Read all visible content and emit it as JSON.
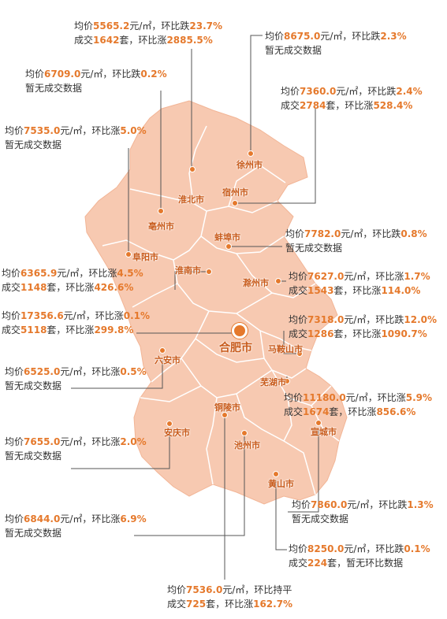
{
  "colors": {
    "land": "#f7c9b1",
    "land_light": "#fadbc9",
    "border": "#ffffff",
    "accent": "#e5792c",
    "leader": "#555555"
  },
  "cities": [
    {
      "id": "huaibei",
      "name": "淮北市",
      "line1": [
        "均价",
        "5565.2",
        "元/㎡，环比跌",
        "23.7%"
      ],
      "line2": [
        "成交",
        "1642",
        "套，环比涨",
        "2885.5%"
      ]
    },
    {
      "id": "xuzhou",
      "name": "徐州市",
      "line1": [
        "均价",
        "8675.0",
        "元/㎡，环比跌",
        "2.3%"
      ],
      "line2": [
        "暂无成交数据"
      ]
    },
    {
      "id": "bozhou",
      "name": "亳州市",
      "line1": [
        "均价",
        "6709.0",
        "元/㎡，环比跌",
        "0.2%"
      ],
      "line2": [
        "暂无成交数据"
      ]
    },
    {
      "id": "suzhou",
      "name": "宿州市",
      "line1": [
        "均价",
        "7360.0",
        "元/㎡，环比跌",
        "2.4%"
      ],
      "line2": [
        "成交",
        "2784",
        "套，环比涨",
        "528.4%"
      ]
    },
    {
      "id": "fuyang",
      "name": "阜阳市",
      "line1": [
        "均价",
        "7535.0",
        "元/㎡，环比涨",
        "5.0%"
      ],
      "line2": [
        "暂无成交数据"
      ]
    },
    {
      "id": "bengbu",
      "name": "蚌埠市",
      "line1": [
        "均价",
        "7782.0",
        "元/㎡，环比跌",
        "0.8%"
      ],
      "line2": [
        "暂无成交数据"
      ]
    },
    {
      "id": "huainan",
      "name": "淮南市",
      "line1": [
        "均价",
        "6365.9",
        "元/㎡，环比涨",
        "4.5%"
      ],
      "line2": [
        "成交",
        "1148",
        "套，环比涨",
        "426.6%"
      ]
    },
    {
      "id": "chuzhou",
      "name": "滁州市",
      "line1": [
        "均价",
        "7627.0",
        "元/㎡，环比涨",
        "1.7%"
      ],
      "line2": [
        "成交",
        "1543",
        "套，环比涨",
        "114.0%"
      ]
    },
    {
      "id": "hefei",
      "name": "合肥市",
      "line1": [
        "均价",
        "17356.6",
        "元/㎡，环比涨",
        "0.1%"
      ],
      "line2": [
        "成交",
        "5118",
        "套，环比涨",
        "299.8%"
      ]
    },
    {
      "id": "maanshan",
      "name": "马鞍山市",
      "line1": [
        "均价",
        "7318.0",
        "元/㎡，环比跌",
        "12.0%"
      ],
      "line2": [
        "成交",
        "1286",
        "套，环比涨",
        "1090.7%"
      ]
    },
    {
      "id": "luan",
      "name": "六安市",
      "line1": [
        "均价",
        "6525.0",
        "元/㎡，环比涨",
        "0.5%"
      ],
      "line2": [
        "暂无成交数据"
      ]
    },
    {
      "id": "wuhu",
      "name": "芜湖市",
      "line1": [
        "均价",
        "11180.0",
        "元/㎡，环比涨",
        "5.9%"
      ],
      "line2": [
        "成交",
        "1674",
        "套，环比涨",
        "856.6%"
      ]
    },
    {
      "id": "anqing",
      "name": "安庆市",
      "line1": [
        "均价",
        "7655.0",
        "元/㎡，环比涨",
        "2.0%"
      ],
      "line2": [
        "暂无成交数据"
      ]
    },
    {
      "id": "tongling",
      "name": "铜陵市",
      "line1": [
        "均价",
        "7536.0",
        "元/㎡，环比持平"
      ],
      "line2": [
        "成交",
        "725",
        "套，环比涨",
        "162.7%"
      ]
    },
    {
      "id": "chizhou",
      "name": "池州市",
      "line1": [
        "均价",
        "6844.0",
        "元/㎡，环比涨",
        "6.9%"
      ],
      "line2": [
        "暂无成交数据"
      ]
    },
    {
      "id": "xuancheng",
      "name": "宣城市",
      "line1": [
        "均价",
        "7860.0",
        "元/㎡，环比跌",
        "1.3%"
      ],
      "line2": [
        "暂无成交数据"
      ]
    },
    {
      "id": "huangshan",
      "name": "黄山市",
      "line1": [
        "均价",
        "8250.0",
        "元/㎡，环比跌",
        "0.1%"
      ],
      "line2": [
        "成交",
        "224",
        "套，暂无环比数据"
      ]
    }
  ]
}
